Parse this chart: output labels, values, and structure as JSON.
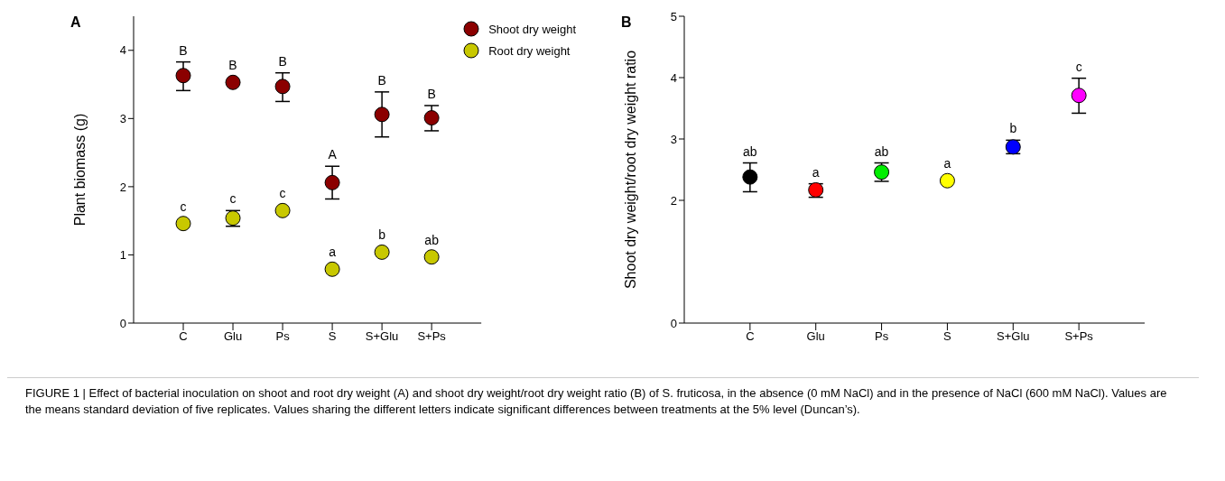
{
  "chart_data": [
    {
      "type": "scatter",
      "title": "A",
      "ylabel": "Plant biomass (g)",
      "categories": [
        "C",
        "Glu",
        "Ps",
        "S",
        "S+Glu",
        "S+Ps"
      ],
      "ylim": [
        0,
        4.5
      ],
      "yticks": [
        0,
        1,
        2,
        3,
        4
      ],
      "marker": "circle",
      "legend": "top right",
      "grid": false,
      "series": [
        {
          "name": "Shoot dry weight",
          "color": "#8b0000",
          "values": [
            3.63,
            3.53,
            3.47,
            2.06,
            3.06,
            3.01
          ],
          "errors": [
            [
              3.41,
              3.83
            ],
            null,
            [
              3.25,
              3.67
            ],
            [
              1.82,
              2.3
            ],
            [
              2.73,
              3.39
            ],
            [
              2.82,
              3.19
            ]
          ]
        },
        {
          "name": "Root dry weight",
          "color": "#c8c800",
          "values": [
            1.46,
            1.54,
            1.65,
            0.79,
            1.04,
            0.97
          ],
          "errors": [
            null,
            [
              1.42,
              1.65
            ],
            null,
            null,
            null,
            null
          ]
        }
      ],
      "annotations": [
        {
          "text": "B",
          "x": "C",
          "y": 3.63
        },
        {
          "text": "B",
          "x": "Glu",
          "y": 3.53
        },
        {
          "text": "B",
          "x": "Ps",
          "y": 3.47
        },
        {
          "text": "A",
          "x": "S",
          "y": 2.06
        },
        {
          "text": "B",
          "x": "S+Glu",
          "y": 3.06
        },
        {
          "text": "B",
          "x": "S+Ps",
          "y": 3.01
        },
        {
          "text": "c",
          "x": "C",
          "y": 1.46
        },
        {
          "text": "c",
          "x": "Glu",
          "y": 1.54
        },
        {
          "text": "c",
          "x": "Ps",
          "y": 1.65
        },
        {
          "text": "a",
          "x": "S",
          "y": 0.79
        },
        {
          "text": "b",
          "x": "S+Glu",
          "y": 1.04
        },
        {
          "text": "ab",
          "x": "S+Ps",
          "y": 0.97
        },
        "FIGURE 1 | Effect of bacterial inoculation on shoot and root dry weight (A) and shoot dry weight/root dry weight ratio (B) of S. fruticosa, in the absence (0 mM NaCl) and in the presence of NaCl (600 mM NaCl). Values are the means standard deviation of five replicates. Values sharing the different letters indicate significant differences between treatments at the 5% level (Duncan’s)."
      ]
    },
    {
      "type": "scatter",
      "title": "B",
      "ylabel": "Shoot dry weight/root dry weight ratio",
      "categories": [
        "C",
        "Glu",
        "Ps",
        "S",
        "S+Glu",
        "S+Ps"
      ],
      "ylim": [
        0,
        5
      ],
      "yticks": [
        0,
        2,
        3,
        4,
        5
      ],
      "marker": "circle",
      "grid": false,
      "series": [
        {
          "colors": [
            "#000000",
            "#ff0000",
            "#00ee00",
            "#ffff00",
            "#0000ff",
            "#ff00ff"
          ],
          "values": [
            2.38,
            2.17,
            2.46,
            2.32,
            2.87,
            3.71
          ],
          "errors": [
            [
              2.14,
              2.61
            ],
            [
              2.05,
              2.27
            ],
            [
              2.31,
              2.61
            ],
            null,
            [
              2.76,
              2.98
            ],
            [
              3.42,
              3.99
            ]
          ]
        }
      ],
      "annotations": [
        {
          "text": "ab",
          "x": "C",
          "y": 2.38
        },
        {
          "text": "a",
          "x": "Glu",
          "y": 2.17
        },
        {
          "text": "ab",
          "x": "Ps",
          "y": 2.46
        },
        {
          "text": "a",
          "x": "S",
          "y": 2.32
        },
        {
          "text": "b",
          "x": "S+Glu",
          "y": 2.87
        },
        {
          "text": "c",
          "x": "S+Ps",
          "y": 3.71
        }
      ]
    }
  ]
}
